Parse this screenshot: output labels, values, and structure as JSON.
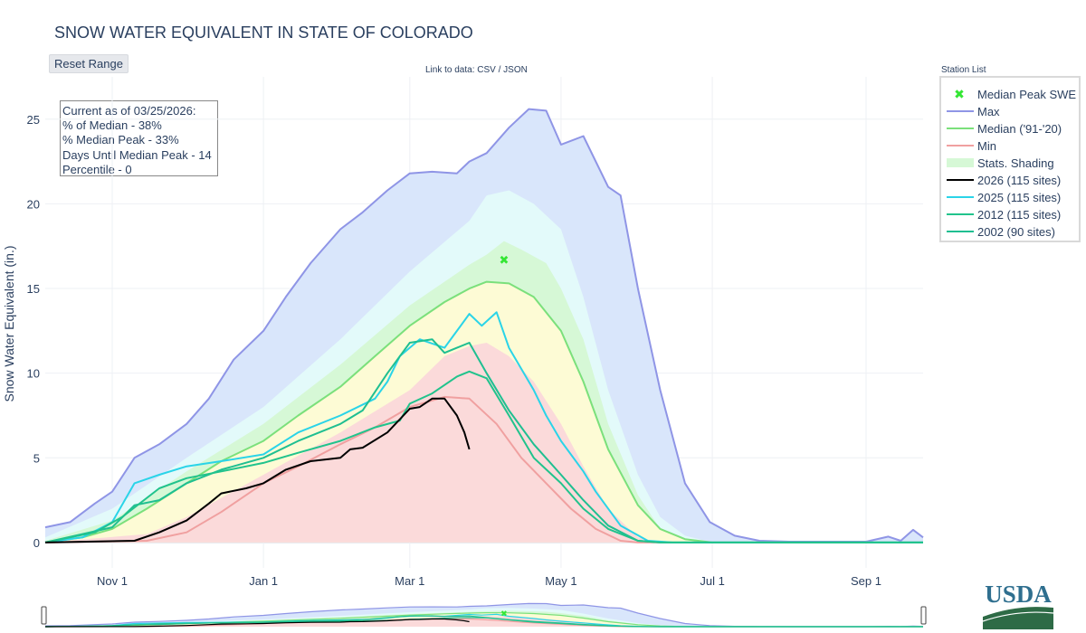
{
  "header": {
    "title": "SNOW WATER EQUIVALENT IN STATE OF COLORADO",
    "reset_label": "Reset Range",
    "link_prefix": "Link to data:",
    "link_csv": "CSV",
    "link_sep": "/",
    "link_json": "JSON",
    "station_list_label": "Station List"
  },
  "info_box": {
    "lines": [
      "Current as of 03/25/2026:",
      "% of Median - 38%",
      "% Median Peak - 33%",
      "Days Until Median Peak - 14",
      "Percentile - 0"
    ]
  },
  "logo": {
    "text": "USDA"
  },
  "colors": {
    "max": "#8f95e6",
    "median": "#7be07b",
    "min": "#f0a0a0",
    "shade_outer": "#d9e6fb",
    "shade_2": "#e3fafa",
    "shade_3": "#d6f8d6",
    "shade_4": "#fdfbd5",
    "shade_5": "#fbdada",
    "y2026": "#000000",
    "y2025": "#2ad4e8",
    "y2012": "#21c38c",
    "y2002": "#1fbf91",
    "peak_marker": "#33e633"
  },
  "chart_data": {
    "type": "line",
    "title": "SNOW WATER EQUIVALENT IN STATE OF COLORADO",
    "xlabel": "",
    "ylabel": "Snow Water Equivalent (in.)",
    "x_tick_labels": [
      "Nov 1",
      "Jan 1",
      "Mar 1",
      "May 1",
      "Jul 1",
      "Sep 1"
    ],
    "x_tick_dates": [
      "Nov 1",
      "Jan 1",
      "Mar 1",
      "May 1",
      "Jul 1",
      "Sep 1"
    ],
    "x_range": [
      "Oct 5",
      "Sep 24"
    ],
    "y_ticks": [
      0,
      5,
      10,
      15,
      20,
      25
    ],
    "ylim": [
      -1.5,
      27.5
    ],
    "grid": true,
    "legend_position": "right",
    "median_peak": {
      "name": "Median Peak SWE",
      "date": "Apr 8",
      "value": 16.7
    },
    "series": [
      {
        "name": "Max",
        "key": "max",
        "points": [
          [
            "Oct 5",
            0.9
          ],
          [
            "Oct 15",
            1.2
          ],
          [
            "Oct 25",
            2.3
          ],
          [
            "Nov 1",
            3.0
          ],
          [
            "Nov 10",
            5.0
          ],
          [
            "Nov 20",
            5.8
          ],
          [
            "Dec 1",
            7.0
          ],
          [
            "Dec 10",
            8.5
          ],
          [
            "Dec 20",
            10.8
          ],
          [
            "Jan 1",
            12.5
          ],
          [
            "Jan 10",
            14.5
          ],
          [
            "Jan 20",
            16.5
          ],
          [
            "Feb 1",
            18.5
          ],
          [
            "Feb 10",
            19.5
          ],
          [
            "Feb 20",
            20.8
          ],
          [
            "Mar 1",
            21.8
          ],
          [
            "Mar 10",
            21.9
          ],
          [
            "Mar 20",
            21.8
          ],
          [
            "Mar 25",
            22.5
          ],
          [
            "Apr 1",
            23.0
          ],
          [
            "Apr 10",
            24.5
          ],
          [
            "Apr 18",
            25.6
          ],
          [
            "Apr 25",
            25.5
          ],
          [
            "May 1",
            23.5
          ],
          [
            "May 10",
            24.0
          ],
          [
            "May 20",
            21.0
          ],
          [
            "May 25",
            20.5
          ],
          [
            "Jun 1",
            15.0
          ],
          [
            "Jun 10",
            9.0
          ],
          [
            "Jun 20",
            3.5
          ],
          [
            "Jun 30",
            1.2
          ],
          [
            "Jul 10",
            0.4
          ],
          [
            "Jul 20",
            0.1
          ],
          [
            "Aug 1",
            0.05
          ],
          [
            "Sep 1",
            0.05
          ],
          [
            "Sep 10",
            0.35
          ],
          [
            "Sep 15",
            0.1
          ],
          [
            "Sep 20",
            0.75
          ],
          [
            "Sep 24",
            0.3
          ]
        ]
      },
      {
        "name": "Median ('91-'20)",
        "key": "median",
        "points": [
          [
            "Oct 5",
            0.0
          ],
          [
            "Oct 20",
            0.3
          ],
          [
            "Nov 1",
            0.8
          ],
          [
            "Nov 15",
            2.0
          ],
          [
            "Dec 1",
            3.5
          ],
          [
            "Dec 15",
            4.8
          ],
          [
            "Jan 1",
            6.0
          ],
          [
            "Jan 15",
            7.5
          ],
          [
            "Feb 1",
            9.2
          ],
          [
            "Feb 15",
            11.0
          ],
          [
            "Mar 1",
            12.8
          ],
          [
            "Mar 15",
            14.2
          ],
          [
            "Mar 25",
            15.0
          ],
          [
            "Apr 1",
            15.4
          ],
          [
            "Apr 10",
            15.3
          ],
          [
            "Apr 20",
            14.5
          ],
          [
            "May 1",
            12.5
          ],
          [
            "May 10",
            9.5
          ],
          [
            "May 20",
            5.5
          ],
          [
            "Jun 1",
            2.2
          ],
          [
            "Jun 10",
            0.8
          ],
          [
            "Jun 20",
            0.2
          ],
          [
            "Jul 1",
            0.0
          ],
          [
            "Sep 24",
            0.0
          ]
        ]
      },
      {
        "name": "Min",
        "key": "min",
        "points": [
          [
            "Oct 5",
            0.0
          ],
          [
            "Nov 15",
            0.1
          ],
          [
            "Dec 1",
            0.6
          ],
          [
            "Dec 15",
            1.8
          ],
          [
            "Jan 1",
            3.5
          ],
          [
            "Jan 15",
            4.5
          ],
          [
            "Feb 1",
            5.8
          ],
          [
            "Feb 15",
            6.8
          ],
          [
            "Mar 1",
            8.0
          ],
          [
            "Mar 15",
            8.6
          ],
          [
            "Mar 25",
            8.5
          ],
          [
            "Apr 5",
            7.0
          ],
          [
            "Apr 15",
            5.0
          ],
          [
            "Apr 25",
            3.5
          ],
          [
            "May 5",
            2.0
          ],
          [
            "May 15",
            0.8
          ],
          [
            "May 25",
            0.1
          ],
          [
            "Jun 1",
            0.0
          ],
          [
            "Sep 24",
            0.0
          ]
        ]
      },
      {
        "name": "2026 (115 sites)",
        "key": "y2026",
        "points": [
          [
            "Oct 5",
            0.0
          ],
          [
            "Nov 10",
            0.1
          ],
          [
            "Nov 20",
            0.6
          ],
          [
            "Dec 1",
            1.3
          ],
          [
            "Dec 10",
            2.3
          ],
          [
            "Dec 15",
            2.9
          ],
          [
            "Dec 25",
            3.2
          ],
          [
            "Jan 1",
            3.5
          ],
          [
            "Jan 10",
            4.3
          ],
          [
            "Jan 20",
            4.8
          ],
          [
            "Feb 1",
            5.0
          ],
          [
            "Feb 5",
            5.5
          ],
          [
            "Feb 10",
            5.6
          ],
          [
            "Feb 20",
            6.5
          ],
          [
            "Mar 1",
            7.9
          ],
          [
            "Mar 5",
            8.0
          ],
          [
            "Mar 10",
            8.5
          ],
          [
            "Mar 15",
            8.5
          ],
          [
            "Mar 20",
            7.5
          ],
          [
            "Mar 23",
            6.5
          ],
          [
            "Mar 25",
            5.5
          ]
        ]
      },
      {
        "name": "2025 (115 sites)",
        "key": "y2025",
        "points": [
          [
            "Oct 5",
            0.0
          ],
          [
            "Oct 20",
            0.3
          ],
          [
            "Oct 28",
            0.9
          ],
          [
            "Nov 1",
            1.2
          ],
          [
            "Nov 10",
            3.5
          ],
          [
            "Nov 20",
            4.0
          ],
          [
            "Dec 1",
            4.5
          ],
          [
            "Dec 15",
            4.8
          ],
          [
            "Jan 1",
            5.2
          ],
          [
            "Jan 15",
            6.5
          ],
          [
            "Feb 1",
            7.5
          ],
          [
            "Feb 15",
            8.5
          ],
          [
            "Feb 20",
            9.5
          ],
          [
            "Feb 25",
            11.0
          ],
          [
            "Mar 5",
            12.0
          ],
          [
            "Mar 15",
            11.5
          ],
          [
            "Mar 20",
            12.5
          ],
          [
            "Mar 25",
            13.5
          ],
          [
            "Mar 30",
            12.8
          ],
          [
            "Apr 5",
            13.6
          ],
          [
            "Apr 10",
            11.5
          ],
          [
            "Apr 20",
            9.0
          ],
          [
            "Apr 25",
            7.5
          ],
          [
            "May 1",
            6.0
          ],
          [
            "May 10",
            4.2
          ],
          [
            "May 15",
            3.0
          ],
          [
            "May 25",
            1.0
          ],
          [
            "Jun 5",
            0.1
          ],
          [
            "Jun 15",
            0.0
          ],
          [
            "Sep 24",
            0.0
          ]
        ]
      },
      {
        "name": "2012 (115 sites)",
        "key": "y2012",
        "points": [
          [
            "Oct 5",
            0.0
          ],
          [
            "Oct 25",
            0.6
          ],
          [
            "Nov 5",
            1.5
          ],
          [
            "Nov 20",
            3.2
          ],
          [
            "Dec 1",
            3.8
          ],
          [
            "Dec 15",
            4.2
          ],
          [
            "Jan 1",
            4.7
          ],
          [
            "Jan 15",
            5.3
          ],
          [
            "Feb 1",
            6.0
          ],
          [
            "Feb 15",
            6.8
          ],
          [
            "Feb 25",
            7.2
          ],
          [
            "Mar 1",
            8.2
          ],
          [
            "Mar 10",
            8.8
          ],
          [
            "Mar 20",
            9.8
          ],
          [
            "Mar 25",
            10.1
          ],
          [
            "Apr 1",
            9.7
          ],
          [
            "Apr 10",
            7.5
          ],
          [
            "Apr 20",
            5.0
          ],
          [
            "May 1",
            3.5
          ],
          [
            "May 10",
            2.0
          ],
          [
            "May 20",
            0.8
          ],
          [
            "Jun 1",
            0.1
          ],
          [
            "Jun 10",
            0.0
          ],
          [
            "Sep 24",
            0.0
          ]
        ]
      },
      {
        "name": "2002 (90 sites)",
        "key": "y2002",
        "points": [
          [
            "Oct 5",
            0.0
          ],
          [
            "Oct 20",
            0.5
          ],
          [
            "Nov 1",
            0.9
          ],
          [
            "Nov 10",
            2.2
          ],
          [
            "Nov 20",
            2.5
          ],
          [
            "Dec 1",
            3.5
          ],
          [
            "Dec 15",
            4.3
          ],
          [
            "Jan 1",
            5.0
          ],
          [
            "Jan 15",
            6.0
          ],
          [
            "Feb 1",
            7.0
          ],
          [
            "Feb 10",
            7.8
          ],
          [
            "Feb 20",
            10.0
          ],
          [
            "Mar 1",
            11.8
          ],
          [
            "Mar 10",
            12.0
          ],
          [
            "Mar 15",
            11.2
          ],
          [
            "Mar 20",
            11.5
          ],
          [
            "Mar 25",
            11.8
          ],
          [
            "Apr 1",
            10.0
          ],
          [
            "Apr 10",
            7.8
          ],
          [
            "Apr 20",
            5.8
          ],
          [
            "May 1",
            4.0
          ],
          [
            "May 10",
            2.5
          ],
          [
            "May 20",
            1.0
          ],
          [
            "Jun 1",
            0.1
          ],
          [
            "Jun 10",
            0.0
          ],
          [
            "Sep 24",
            0.0
          ]
        ]
      }
    ],
    "stats_shading": {
      "name": "Stats. Shading",
      "bands": [
        {
          "key": "shade_outer",
          "upper": "max",
          "lower": "zero"
        },
        {
          "key": "shade_2",
          "upper_points": [
            [
              "Oct 5",
              0.3
            ],
            [
              "Nov 1",
              2.0
            ],
            [
              "Dec 1",
              5.0
            ],
            [
              "Jan 1",
              8.0
            ],
            [
              "Feb 1",
              12.0
            ],
            [
              "Mar 1",
              16.0
            ],
            [
              "Mar 25",
              19.0
            ],
            [
              "Apr 1",
              20.5
            ],
            [
              "Apr 10",
              20.8
            ],
            [
              "Apr 20",
              20.0
            ],
            [
              "May 1",
              18.5
            ],
            [
              "May 10",
              14.5
            ],
            [
              "May 20",
              9.0
            ],
            [
              "Jun 1",
              4.0
            ],
            [
              "Jun 10",
              1.5
            ],
            [
              "Jun 20",
              0.4
            ],
            [
              "Jul 1",
              0.0
            ],
            [
              "Sep 24",
              0.0
            ]
          ],
          "lower": "zero"
        },
        {
          "key": "shade_3",
          "upper_points": [
            [
              "Oct 5",
              0.1
            ],
            [
              "Nov 1",
              1.3
            ],
            [
              "Dec 1",
              4.2
            ],
            [
              "Jan 1",
              7.0
            ],
            [
              "Feb 1",
              10.5
            ],
            [
              "Mar 1",
              14.0
            ],
            [
              "Mar 25",
              16.4
            ],
            [
              "Apr 1",
              17.0
            ],
            [
              "Apr 8",
              17.8
            ],
            [
              "Apr 15",
              17.3
            ],
            [
              "Apr 25",
              16.5
            ],
            [
              "May 1",
              15.0
            ],
            [
              "May 10",
              12.0
            ],
            [
              "May 20",
              7.0
            ],
            [
              "Jun 1",
              2.8
            ],
            [
              "Jun 10",
              0.8
            ],
            [
              "Jun 20",
              0.1
            ],
            [
              "Jul 1",
              0.0
            ],
            [
              "Sep 24",
              0.0
            ]
          ],
          "lower": "zero"
        },
        {
          "key": "shade_4",
          "upper": "median",
          "lower": "zero"
        },
        {
          "key": "shade_5",
          "upper_points": [
            [
              "Oct 5",
              0.0
            ],
            [
              "Nov 15",
              0.5
            ],
            [
              "Dec 1",
              1.5
            ],
            [
              "Jan 1",
              4.0
            ],
            [
              "Feb 1",
              6.5
            ],
            [
              "Mar 1",
              9.0
            ],
            [
              "Mar 15",
              11.0
            ],
            [
              "Mar 25",
              11.6
            ],
            [
              "Apr 1",
              11.8
            ],
            [
              "Apr 10",
              11.0
            ],
            [
              "Apr 20",
              9.5
            ],
            [
              "May 1",
              7.0
            ],
            [
              "May 10",
              4.5
            ],
            [
              "May 20",
              2.0
            ],
            [
              "Jun 1",
              0.3
            ],
            [
              "Jun 10",
              0.0
            ],
            [
              "Sep 24",
              0.0
            ]
          ],
          "lower": "zero"
        }
      ]
    }
  }
}
